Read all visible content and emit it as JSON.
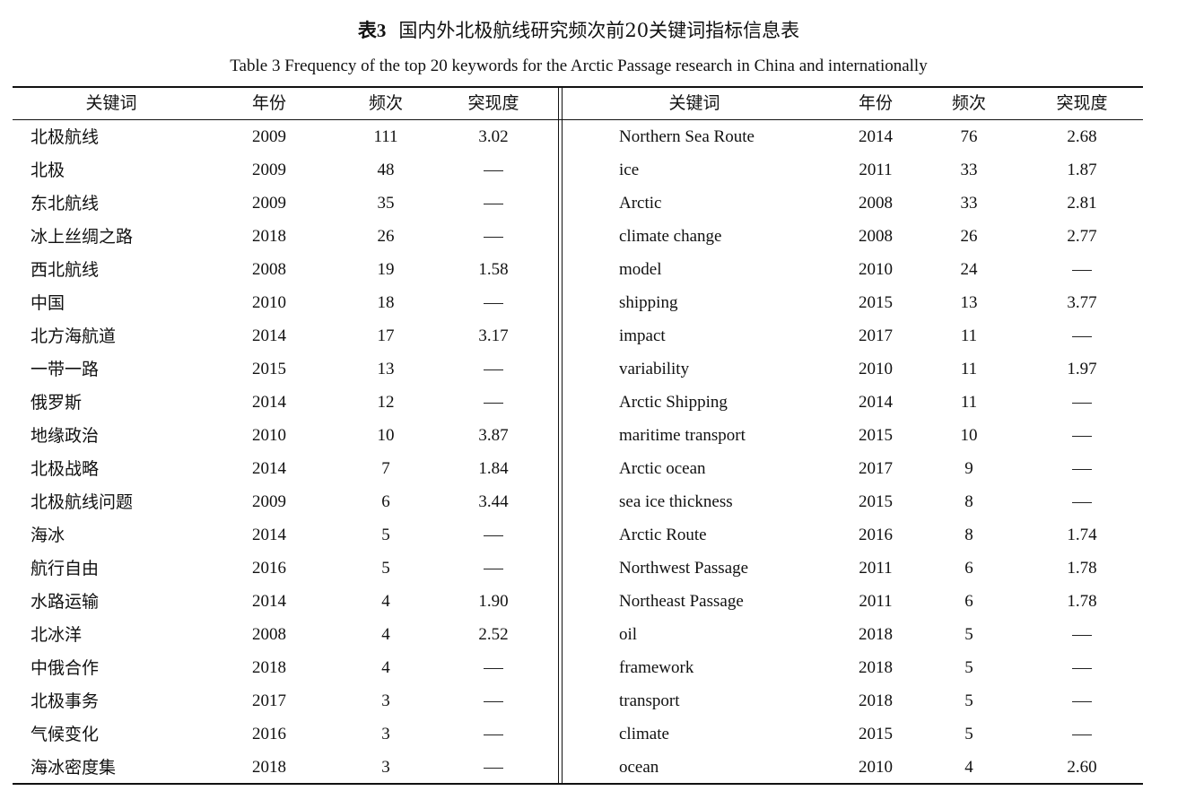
{
  "caption": {
    "cn_number": "表3",
    "cn_title": "国内外北极航线研究频次前20关键词指标信息表",
    "en_title": "Table 3   Frequency of the top 20 keywords for the Arctic Passage research in China and internationally"
  },
  "headers": {
    "keyword": "关键词",
    "year": "年份",
    "frequency": "频次",
    "burst": "突现度"
  },
  "empty_marker": "—",
  "rows": [
    {
      "cn": "北极航线",
      "cn_year": "2009",
      "cn_freq": "111",
      "cn_burst": "3.02",
      "en": "Northern Sea Route",
      "en_year": "2014",
      "en_freq": "76",
      "en_burst": "2.68"
    },
    {
      "cn": "北极",
      "cn_year": "2009",
      "cn_freq": "48",
      "cn_burst": "",
      "en": "ice",
      "en_year": "2011",
      "en_freq": "33",
      "en_burst": "1.87"
    },
    {
      "cn": "东北航线",
      "cn_year": "2009",
      "cn_freq": "35",
      "cn_burst": "",
      "en": "Arctic",
      "en_year": "2008",
      "en_freq": "33",
      "en_burst": "2.81"
    },
    {
      "cn": "冰上丝绸之路",
      "cn_year": "2018",
      "cn_freq": "26",
      "cn_burst": "",
      "en": "climate change",
      "en_year": "2008",
      "en_freq": "26",
      "en_burst": "2.77"
    },
    {
      "cn": "西北航线",
      "cn_year": "2008",
      "cn_freq": "19",
      "cn_burst": "1.58",
      "en": "model",
      "en_year": "2010",
      "en_freq": "24",
      "en_burst": ""
    },
    {
      "cn": "中国",
      "cn_year": "2010",
      "cn_freq": "18",
      "cn_burst": "",
      "en": "shipping",
      "en_year": "2015",
      "en_freq": "13",
      "en_burst": "3.77"
    },
    {
      "cn": "北方海航道",
      "cn_year": "2014",
      "cn_freq": "17",
      "cn_burst": "3.17",
      "en": "impact",
      "en_year": "2017",
      "en_freq": "11",
      "en_burst": ""
    },
    {
      "cn": "一带一路",
      "cn_year": "2015",
      "cn_freq": "13",
      "cn_burst": "",
      "en": "variability",
      "en_year": "2010",
      "en_freq": "11",
      "en_burst": "1.97"
    },
    {
      "cn": "俄罗斯",
      "cn_year": "2014",
      "cn_freq": "12",
      "cn_burst": "",
      "en": "Arctic Shipping",
      "en_year": "2014",
      "en_freq": "11",
      "en_burst": ""
    },
    {
      "cn": "地缘政治",
      "cn_year": "2010",
      "cn_freq": "10",
      "cn_burst": "3.87",
      "en": "maritime transport",
      "en_year": "2015",
      "en_freq": "10",
      "en_burst": ""
    },
    {
      "cn": "北极战略",
      "cn_year": "2014",
      "cn_freq": "7",
      "cn_burst": "1.84",
      "en": "Arctic ocean",
      "en_year": "2017",
      "en_freq": "9",
      "en_burst": ""
    },
    {
      "cn": "北极航线问题",
      "cn_year": "2009",
      "cn_freq": "6",
      "cn_burst": "3.44",
      "en": "sea ice thickness",
      "en_year": "2015",
      "en_freq": "8",
      "en_burst": ""
    },
    {
      "cn": "海冰",
      "cn_year": "2014",
      "cn_freq": "5",
      "cn_burst": "",
      "en": "Arctic Route",
      "en_year": "2016",
      "en_freq": "8",
      "en_burst": "1.74"
    },
    {
      "cn": "航行自由",
      "cn_year": "2016",
      "cn_freq": "5",
      "cn_burst": "",
      "en": "Northwest Passage",
      "en_year": "2011",
      "en_freq": "6",
      "en_burst": "1.78"
    },
    {
      "cn": "水路运输",
      "cn_year": "2014",
      "cn_freq": "4",
      "cn_burst": "1.90",
      "en": "Northeast Passage",
      "en_year": "2011",
      "en_freq": "6",
      "en_burst": "1.78"
    },
    {
      "cn": "北冰洋",
      "cn_year": "2008",
      "cn_freq": "4",
      "cn_burst": "2.52",
      "en": "oil",
      "en_year": "2018",
      "en_freq": "5",
      "en_burst": ""
    },
    {
      "cn": "中俄合作",
      "cn_year": "2018",
      "cn_freq": "4",
      "cn_burst": "",
      "en": "framework",
      "en_year": "2018",
      "en_freq": "5",
      "en_burst": ""
    },
    {
      "cn": "北极事务",
      "cn_year": "2017",
      "cn_freq": "3",
      "cn_burst": "",
      "en": "transport",
      "en_year": "2018",
      "en_freq": "5",
      "en_burst": ""
    },
    {
      "cn": "气候变化",
      "cn_year": "2016",
      "cn_freq": "3",
      "cn_burst": "",
      "en": "climate",
      "en_year": "2015",
      "en_freq": "5",
      "en_burst": ""
    },
    {
      "cn": "海冰密度集",
      "cn_year": "2018",
      "cn_freq": "3",
      "cn_burst": "",
      "en": "ocean",
      "en_year": "2010",
      "en_freq": "4",
      "en_burst": "2.60"
    }
  ]
}
